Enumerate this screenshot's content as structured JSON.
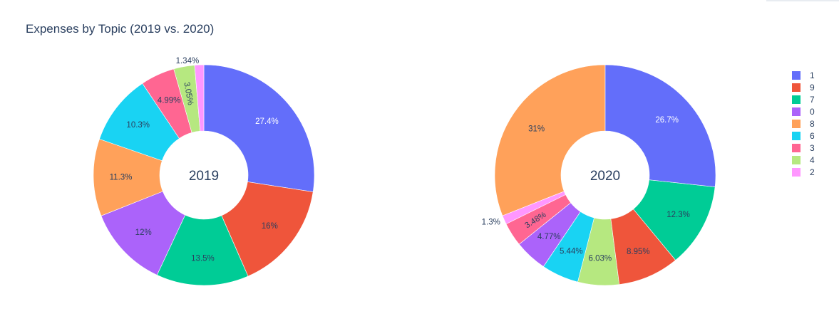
{
  "chart_data": {
    "type": "pie",
    "title": "Expenses by Topic (2019 vs. 2020)",
    "colors": {
      "0": "#ab63fa",
      "1": "#636efa",
      "2": "#ff97ff",
      "3": "#ff6692",
      "4": "#b6e880",
      "6": "#19d3f3",
      "7": "#00cc96",
      "8": "#ffa15a",
      "9": "#ef553b"
    },
    "legend": {
      "placement": "right",
      "entries": [
        "1",
        "9",
        "7",
        "0",
        "8",
        "6",
        "3",
        "4",
        "2"
      ]
    },
    "pies": [
      {
        "center_label": "2019",
        "slices": [
          {
            "label": "1",
            "value": 27.4,
            "text": "27.4%"
          },
          {
            "label": "9",
            "value": 16.0,
            "text": "16%"
          },
          {
            "label": "7",
            "value": 13.5,
            "text": "13.5%"
          },
          {
            "label": "0",
            "value": 12.0,
            "text": "12%"
          },
          {
            "label": "8",
            "value": 11.3,
            "text": "11.3%"
          },
          {
            "label": "6",
            "value": 10.3,
            "text": "10.3%"
          },
          {
            "label": "3",
            "value": 4.99,
            "text": "4.99%"
          },
          {
            "label": "4",
            "value": 3.05,
            "text": "3.05%"
          },
          {
            "label": "2",
            "value": 1.34,
            "text": "1.34%"
          }
        ]
      },
      {
        "center_label": "2020",
        "slices": [
          {
            "label": "8",
            "value": 31.0,
            "text": "31%"
          },
          {
            "label": "2",
            "value": 1.3,
            "text": "1.3%"
          },
          {
            "label": "3",
            "value": 3.48,
            "text": "3.48%"
          },
          {
            "label": "0",
            "value": 4.77,
            "text": "4.77%"
          },
          {
            "label": "6",
            "value": 5.44,
            "text": "5.44%"
          },
          {
            "label": "4",
            "value": 6.03,
            "text": "6.03%"
          },
          {
            "label": "9",
            "value": 8.95,
            "text": "8.95%"
          },
          {
            "label": "7",
            "value": 12.3,
            "text": "12.3%"
          },
          {
            "label": "1",
            "value": 26.7,
            "text": "26.7%"
          }
        ]
      }
    ]
  }
}
